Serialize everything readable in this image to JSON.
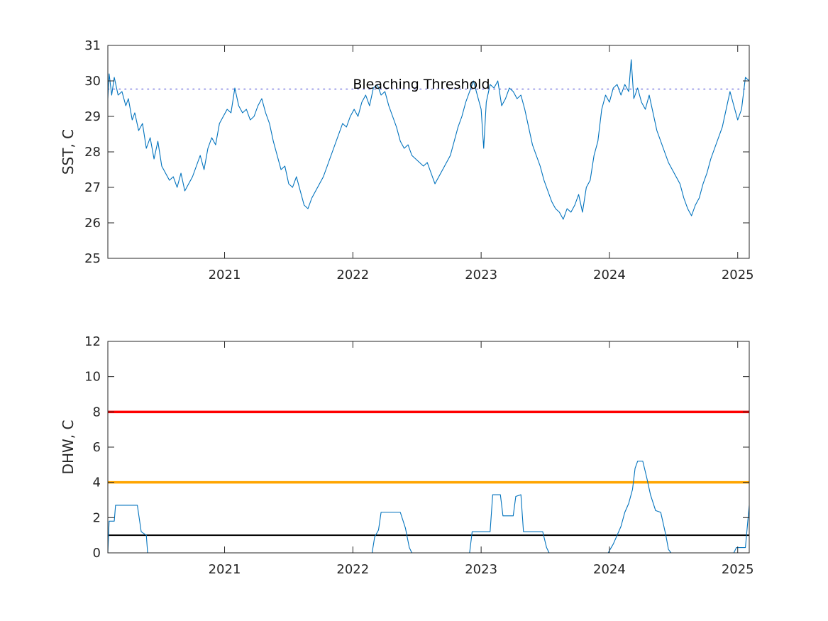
{
  "chart_data": [
    {
      "type": "line",
      "ylabel": "SST, C",
      "xlabel": "",
      "title": "",
      "xlim": [
        2020.09,
        2025.09
      ],
      "ylim": [
        25,
        31
      ],
      "yticks": [
        25,
        26,
        27,
        28,
        29,
        30,
        31
      ],
      "xticks": [
        2021,
        2022,
        2023,
        2024,
        2025
      ],
      "xtick_labels": [
        "2021",
        "2022",
        "2023",
        "2024",
        "2025"
      ],
      "grid": false,
      "reference_lines": [
        {
          "label": "Bleaching Threshold",
          "y": 29.77,
          "style": "dotted",
          "color": "#7e7ee0"
        }
      ],
      "annotations": [
        {
          "text": "Bleaching Threshold",
          "x": 2022.0,
          "y": 29.9
        }
      ],
      "series": [
        {
          "color": "#0072bd",
          "points": [
            [
              2020.09,
              29.5
            ],
            [
              2020.1,
              30.2
            ],
            [
              2020.12,
              29.6
            ],
            [
              2020.14,
              30.1
            ],
            [
              2020.17,
              29.6
            ],
            [
              2020.2,
              29.7
            ],
            [
              2020.23,
              29.3
            ],
            [
              2020.25,
              29.5
            ],
            [
              2020.28,
              28.9
            ],
            [
              2020.3,
              29.1
            ],
            [
              2020.33,
              28.6
            ],
            [
              2020.36,
              28.8
            ],
            [
              2020.39,
              28.1
            ],
            [
              2020.42,
              28.4
            ],
            [
              2020.45,
              27.8
            ],
            [
              2020.48,
              28.3
            ],
            [
              2020.51,
              27.6
            ],
            [
              2020.54,
              27.4
            ],
            [
              2020.57,
              27.2
            ],
            [
              2020.6,
              27.3
            ],
            [
              2020.63,
              27.0
            ],
            [
              2020.66,
              27.4
            ],
            [
              2020.69,
              26.9
            ],
            [
              2020.72,
              27.1
            ],
            [
              2020.75,
              27.3
            ],
            [
              2020.78,
              27.6
            ],
            [
              2020.81,
              27.9
            ],
            [
              2020.84,
              27.5
            ],
            [
              2020.87,
              28.1
            ],
            [
              2020.9,
              28.4
            ],
            [
              2020.93,
              28.2
            ],
            [
              2020.96,
              28.8
            ],
            [
              2020.99,
              29.0
            ],
            [
              2021.02,
              29.2
            ],
            [
              2021.05,
              29.1
            ],
            [
              2021.08,
              29.8
            ],
            [
              2021.11,
              29.3
            ],
            [
              2021.14,
              29.1
            ],
            [
              2021.17,
              29.2
            ],
            [
              2021.2,
              28.9
            ],
            [
              2021.23,
              29.0
            ],
            [
              2021.26,
              29.3
            ],
            [
              2021.29,
              29.5
            ],
            [
              2021.32,
              29.1
            ],
            [
              2021.35,
              28.8
            ],
            [
              2021.38,
              28.3
            ],
            [
              2021.41,
              27.9
            ],
            [
              2021.44,
              27.5
            ],
            [
              2021.47,
              27.6
            ],
            [
              2021.5,
              27.1
            ],
            [
              2021.53,
              27.0
            ],
            [
              2021.56,
              27.3
            ],
            [
              2021.59,
              26.9
            ],
            [
              2021.62,
              26.5
            ],
            [
              2021.65,
              26.4
            ],
            [
              2021.68,
              26.7
            ],
            [
              2021.71,
              26.9
            ],
            [
              2021.74,
              27.1
            ],
            [
              2021.77,
              27.3
            ],
            [
              2021.8,
              27.6
            ],
            [
              2021.83,
              27.9
            ],
            [
              2021.86,
              28.2
            ],
            [
              2021.89,
              28.5
            ],
            [
              2021.92,
              28.8
            ],
            [
              2021.95,
              28.7
            ],
            [
              2021.98,
              29.0
            ],
            [
              2022.01,
              29.2
            ],
            [
              2022.04,
              29.0
            ],
            [
              2022.07,
              29.4
            ],
            [
              2022.1,
              29.6
            ],
            [
              2022.13,
              29.3
            ],
            [
              2022.16,
              29.8
            ],
            [
              2022.19,
              29.9
            ],
            [
              2022.22,
              29.6
            ],
            [
              2022.25,
              29.7
            ],
            [
              2022.28,
              29.3
            ],
            [
              2022.31,
              29.0
            ],
            [
              2022.34,
              28.7
            ],
            [
              2022.37,
              28.3
            ],
            [
              2022.4,
              28.1
            ],
            [
              2022.43,
              28.2
            ],
            [
              2022.46,
              27.9
            ],
            [
              2022.49,
              27.8
            ],
            [
              2022.52,
              27.7
            ],
            [
              2022.55,
              27.6
            ],
            [
              2022.58,
              27.7
            ],
            [
              2022.61,
              27.4
            ],
            [
              2022.64,
              27.1
            ],
            [
              2022.67,
              27.3
            ],
            [
              2022.7,
              27.5
            ],
            [
              2022.73,
              27.7
            ],
            [
              2022.76,
              27.9
            ],
            [
              2022.79,
              28.3
            ],
            [
              2022.82,
              28.7
            ],
            [
              2022.85,
              29.0
            ],
            [
              2022.88,
              29.4
            ],
            [
              2022.91,
              29.7
            ],
            [
              2022.94,
              30.0
            ],
            [
              2022.97,
              29.6
            ],
            [
              2023.0,
              29.2
            ],
            [
              2023.02,
              28.1
            ],
            [
              2023.04,
              29.4
            ],
            [
              2023.07,
              29.9
            ],
            [
              2023.1,
              29.8
            ],
            [
              2023.13,
              30.0
            ],
            [
              2023.16,
              29.3
            ],
            [
              2023.19,
              29.5
            ],
            [
              2023.22,
              29.8
            ],
            [
              2023.25,
              29.7
            ],
            [
              2023.28,
              29.5
            ],
            [
              2023.31,
              29.6
            ],
            [
              2023.34,
              29.2
            ],
            [
              2023.37,
              28.7
            ],
            [
              2023.4,
              28.2
            ],
            [
              2023.43,
              27.9
            ],
            [
              2023.46,
              27.6
            ],
            [
              2023.49,
              27.2
            ],
            [
              2023.52,
              26.9
            ],
            [
              2023.55,
              26.6
            ],
            [
              2023.58,
              26.4
            ],
            [
              2023.61,
              26.3
            ],
            [
              2023.64,
              26.1
            ],
            [
              2023.67,
              26.4
            ],
            [
              2023.7,
              26.3
            ],
            [
              2023.73,
              26.5
            ],
            [
              2023.76,
              26.8
            ],
            [
              2023.79,
              26.3
            ],
            [
              2023.82,
              27.0
            ],
            [
              2023.85,
              27.2
            ],
            [
              2023.88,
              27.9
            ],
            [
              2023.91,
              28.3
            ],
            [
              2023.94,
              29.2
            ],
            [
              2023.97,
              29.6
            ],
            [
              2024.0,
              29.4
            ],
            [
              2024.03,
              29.8
            ],
            [
              2024.06,
              29.9
            ],
            [
              2024.09,
              29.6
            ],
            [
              2024.12,
              29.9
            ],
            [
              2024.15,
              29.7
            ],
            [
              2024.17,
              30.6
            ],
            [
              2024.19,
              29.5
            ],
            [
              2024.22,
              29.8
            ],
            [
              2024.25,
              29.4
            ],
            [
              2024.28,
              29.2
            ],
            [
              2024.31,
              29.6
            ],
            [
              2024.34,
              29.1
            ],
            [
              2024.37,
              28.6
            ],
            [
              2024.4,
              28.3
            ],
            [
              2024.43,
              28.0
            ],
            [
              2024.46,
              27.7
            ],
            [
              2024.49,
              27.5
            ],
            [
              2024.52,
              27.3
            ],
            [
              2024.55,
              27.1
            ],
            [
              2024.58,
              26.7
            ],
            [
              2024.61,
              26.4
            ],
            [
              2024.64,
              26.2
            ],
            [
              2024.67,
              26.5
            ],
            [
              2024.7,
              26.7
            ],
            [
              2024.73,
              27.1
            ],
            [
              2024.76,
              27.4
            ],
            [
              2024.79,
              27.8
            ],
            [
              2024.82,
              28.1
            ],
            [
              2024.85,
              28.4
            ],
            [
              2024.88,
              28.7
            ],
            [
              2024.91,
              29.2
            ],
            [
              2024.94,
              29.7
            ],
            [
              2024.97,
              29.3
            ],
            [
              2025.0,
              28.9
            ],
            [
              2025.03,
              29.2
            ],
            [
              2025.06,
              30.1
            ],
            [
              2025.09,
              30.0
            ]
          ]
        }
      ]
    },
    {
      "type": "line",
      "ylabel": "DHW, C",
      "xlabel": "",
      "title": "",
      "xlim": [
        2020.09,
        2025.09
      ],
      "ylim": [
        0,
        12
      ],
      "yticks": [
        0,
        2,
        4,
        6,
        8,
        10,
        12
      ],
      "xticks": [
        2021,
        2022,
        2023,
        2024,
        2025
      ],
      "xtick_labels": [
        "2021",
        "2022",
        "2023",
        "2024",
        "2025"
      ],
      "grid": false,
      "reference_lines": [
        {
          "y": 8,
          "color": "#ff0000"
        },
        {
          "y": 4,
          "color": "#ffa500"
        },
        {
          "y": 1,
          "color": "#000000"
        }
      ],
      "series": [
        {
          "color": "#0072bd",
          "points": [
            [
              2020.09,
              0.0
            ],
            [
              2020.1,
              1.8
            ],
            [
              2020.14,
              1.8
            ],
            [
              2020.15,
              2.7
            ],
            [
              2020.32,
              2.7
            ],
            [
              2020.35,
              1.2
            ],
            [
              2020.39,
              1.0
            ],
            [
              2020.4,
              0.0
            ],
            [
              2022.15,
              0.0
            ],
            [
              2022.17,
              0.9
            ],
            [
              2022.2,
              1.3
            ],
            [
              2022.22,
              2.3
            ],
            [
              2022.37,
              2.3
            ],
            [
              2022.41,
              1.4
            ],
            [
              2022.44,
              0.3
            ],
            [
              2022.46,
              0.0
            ],
            [
              2022.91,
              0.0
            ],
            [
              2022.93,
              1.2
            ],
            [
              2023.07,
              1.2
            ],
            [
              2023.09,
              3.3
            ],
            [
              2023.15,
              3.3
            ],
            [
              2023.17,
              2.1
            ],
            [
              2023.25,
              2.1
            ],
            [
              2023.27,
              3.2
            ],
            [
              2023.31,
              3.3
            ],
            [
              2023.33,
              1.2
            ],
            [
              2023.48,
              1.2
            ],
            [
              2023.51,
              0.3
            ],
            [
              2023.53,
              0.0
            ],
            [
              2023.99,
              0.0
            ],
            [
              2024.03,
              0.5
            ],
            [
              2024.06,
              1.0
            ],
            [
              2024.09,
              1.5
            ],
            [
              2024.12,
              2.3
            ],
            [
              2024.15,
              2.8
            ],
            [
              2024.18,
              3.6
            ],
            [
              2024.2,
              4.8
            ],
            [
              2024.22,
              5.2
            ],
            [
              2024.26,
              5.2
            ],
            [
              2024.29,
              4.3
            ],
            [
              2024.32,
              3.3
            ],
            [
              2024.36,
              2.4
            ],
            [
              2024.4,
              2.3
            ],
            [
              2024.44,
              1.0
            ],
            [
              2024.46,
              0.2
            ],
            [
              2024.48,
              0.0
            ],
            [
              2024.97,
              0.0
            ],
            [
              2024.99,
              0.3
            ],
            [
              2025.06,
              0.3
            ],
            [
              2025.09,
              2.7
            ]
          ]
        }
      ]
    }
  ]
}
